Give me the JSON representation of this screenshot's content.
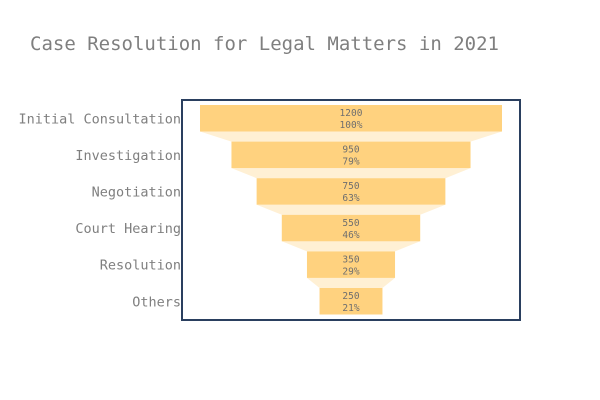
{
  "chart_data": {
    "type": "funnel",
    "title": "Case Resolution for Legal Matters in 2021",
    "categories": [
      "Initial Consultation",
      "Investigation",
      "Negotiation",
      "Court Hearing",
      "Resolution",
      "Others"
    ],
    "values": [
      1200,
      950,
      750,
      550,
      350,
      250
    ],
    "percent_of_initial": [
      "100%",
      "79%",
      "63%",
      "46%",
      "29%",
      "21%"
    ],
    "colors": {
      "bar": "#ffd27f",
      "connector": "#fff0d4",
      "frame": "#2a3f5f",
      "text": "#7f7f7f"
    }
  }
}
